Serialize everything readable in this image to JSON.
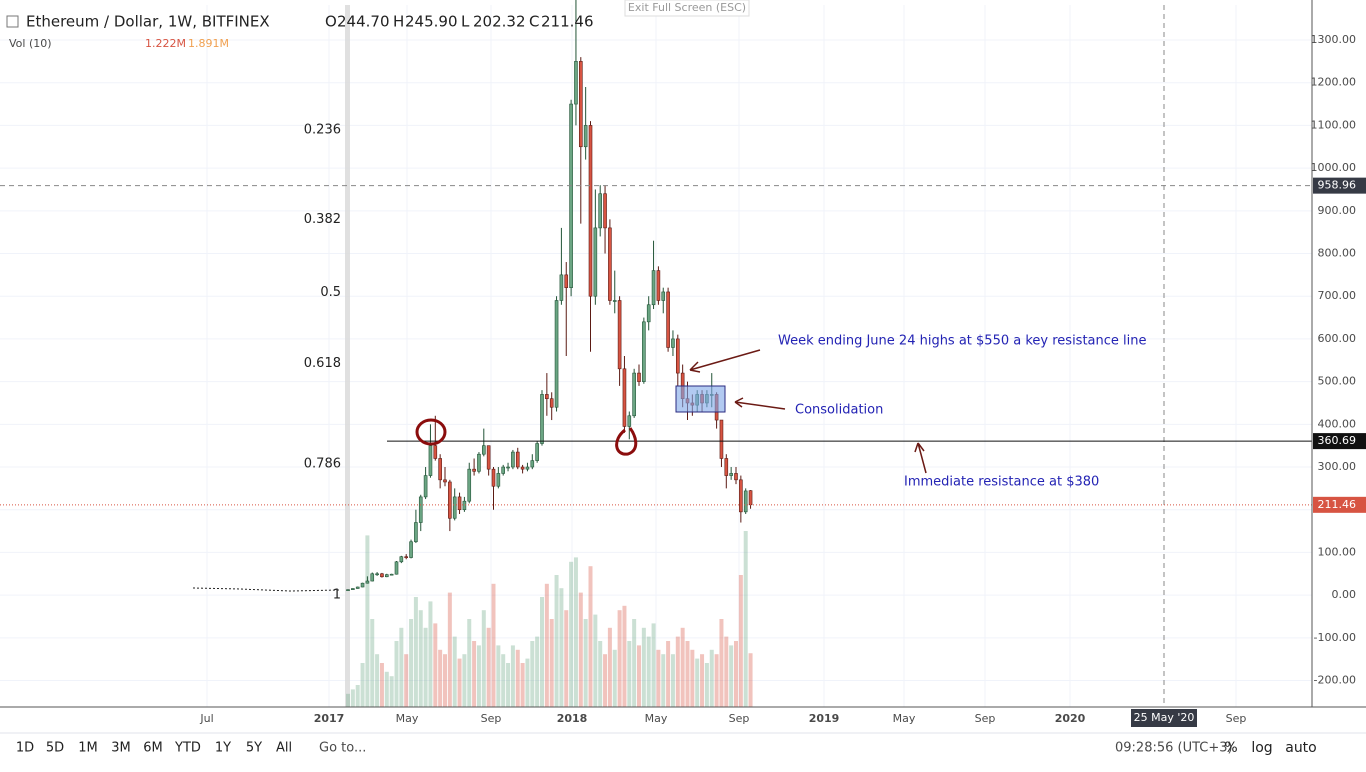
{
  "header": {
    "symbol": "Ethereum / Dollar, 1W, BITFINEX",
    "ohlc": [
      {
        "key": "O",
        "value": 244.7,
        "label": "244.70"
      },
      {
        "key": "H",
        "value": 245.9,
        "label": "245.90"
      },
      {
        "key": "L",
        "value": 202.32,
        "label": "202.32"
      },
      {
        "key": "C",
        "value": 211.46,
        "label": "211.46"
      }
    ],
    "exit": "Exit Full Screen (ESC)",
    "volume_indicator": "Vol (10)",
    "volume_labels": [
      "1.222M",
      "1.891M"
    ]
  },
  "chart_data": {
    "type": "candlestick",
    "candles": [
      [
        11,
        13.5,
        10.5,
        12.8
      ],
      [
        12.8,
        16,
        12.5,
        15.5
      ],
      [
        15.5,
        20,
        15,
        19
      ],
      [
        19,
        29,
        18.5,
        28
      ],
      [
        28,
        44,
        27,
        33
      ],
      [
        33,
        53,
        32,
        50
      ],
      [
        50,
        54,
        45,
        50
      ],
      [
        50,
        52,
        41,
        43
      ],
      [
        43,
        50,
        42,
        48
      ],
      [
        48,
        50,
        46,
        49
      ],
      [
        49,
        80,
        48,
        78
      ],
      [
        78,
        92,
        75,
        90
      ],
      [
        90,
        96,
        84,
        88
      ],
      [
        88,
        130,
        86,
        125
      ],
      [
        125,
        200,
        122,
        170
      ],
      [
        170,
        235,
        150,
        230
      ],
      [
        230,
        300,
        225,
        280
      ],
      [
        280,
        400,
        275,
        350
      ],
      [
        350,
        420,
        315,
        320
      ],
      [
        320,
        330,
        250,
        270
      ],
      [
        270,
        300,
        255,
        265
      ],
      [
        265,
        270,
        150,
        180
      ],
      [
        180,
        250,
        175,
        230
      ],
      [
        230,
        240,
        190,
        200
      ],
      [
        200,
        230,
        195,
        220
      ],
      [
        220,
        310,
        215,
        295
      ],
      [
        295,
        320,
        280,
        290
      ],
      [
        290,
        335,
        285,
        330
      ],
      [
        330,
        390,
        325,
        350
      ],
      [
        350,
        350,
        280,
        295
      ],
      [
        295,
        300,
        200,
        255
      ],
      [
        255,
        300,
        250,
        285
      ],
      [
        285,
        305,
        280,
        300
      ],
      [
        300,
        310,
        290,
        300
      ],
      [
        300,
        340,
        295,
        335
      ],
      [
        335,
        345,
        295,
        300
      ],
      [
        300,
        305,
        285,
        295
      ],
      [
        295,
        310,
        290,
        300
      ],
      [
        300,
        330,
        295,
        315
      ],
      [
        315,
        360,
        310,
        355
      ],
      [
        355,
        480,
        350,
        470
      ],
      [
        470,
        520,
        420,
        460
      ],
      [
        460,
        475,
        410,
        440
      ],
      [
        440,
        700,
        430,
        690
      ],
      [
        690,
        860,
        680,
        750
      ],
      [
        750,
        780,
        560,
        720
      ],
      [
        720,
        1160,
        700,
        1150
      ],
      [
        1150,
        1420,
        1100,
        1250
      ],
      [
        1250,
        1260,
        870,
        1050
      ],
      [
        1050,
        1190,
        1020,
        1100
      ],
      [
        1100,
        1110,
        570,
        700
      ],
      [
        700,
        950,
        680,
        860
      ],
      [
        860,
        960,
        840,
        940
      ],
      [
        940,
        960,
        800,
        860
      ],
      [
        860,
        880,
        680,
        690
      ],
      [
        690,
        760,
        660,
        690
      ],
      [
        690,
        700,
        490,
        530
      ],
      [
        530,
        560,
        380,
        395
      ],
      [
        395,
        430,
        365,
        420
      ],
      [
        420,
        530,
        415,
        520
      ],
      [
        520,
        540,
        490,
        500
      ],
      [
        500,
        650,
        495,
        640
      ],
      [
        640,
        700,
        620,
        680
      ],
      [
        680,
        830,
        670,
        760
      ],
      [
        760,
        770,
        680,
        690
      ],
      [
        690,
        720,
        660,
        710
      ],
      [
        710,
        720,
        570,
        580
      ],
      [
        580,
        620,
        560,
        600
      ],
      [
        600,
        610,
        490,
        520
      ],
      [
        520,
        540,
        440,
        460
      ],
      [
        460,
        500,
        410,
        450
      ],
      [
        450,
        470,
        420,
        445
      ],
      [
        445,
        480,
        430,
        470
      ],
      [
        470,
        480,
        430,
        450
      ],
      [
        450,
        480,
        440,
        470
      ],
      [
        470,
        520,
        440,
        470
      ],
      [
        470,
        475,
        390,
        410
      ],
      [
        410,
        410,
        300,
        320
      ],
      [
        320,
        330,
        250,
        280
      ],
      [
        280,
        300,
        270,
        285
      ],
      [
        285,
        300,
        260,
        270
      ],
      [
        270,
        280,
        170,
        195
      ],
      [
        195,
        250,
        190,
        244
      ],
      [
        244.7,
        245.9,
        202.32,
        211.46
      ]
    ],
    "volume": [
      0.3,
      0.4,
      0.5,
      1.0,
      3.9,
      2.0,
      1.2,
      1.0,
      0.8,
      0.7,
      1.5,
      1.8,
      1.2,
      2.0,
      2.5,
      2.2,
      1.8,
      2.4,
      1.9,
      1.3,
      1.2,
      2.6,
      1.6,
      1.1,
      1.2,
      2.0,
      1.5,
      1.4,
      2.2,
      1.8,
      2.8,
      1.4,
      1.2,
      1.0,
      1.4,
      1.3,
      1.0,
      1.1,
      1.5,
      1.6,
      2.5,
      2.8,
      2.0,
      3.0,
      2.7,
      2.2,
      3.3,
      3.4,
      2.6,
      2.0,
      3.2,
      2.1,
      1.5,
      1.2,
      1.8,
      1.3,
      2.2,
      2.3,
      1.5,
      2.0,
      1.4,
      1.8,
      1.6,
      1.9,
      1.3,
      1.2,
      1.5,
      1.2,
      1.6,
      1.8,
      1.5,
      1.3,
      1.1,
      1.2,
      1.0,
      1.3,
      1.2,
      2.0,
      1.6,
      1.4,
      1.5,
      3.0,
      4.0,
      1.222
    ],
    "vlim": [
      0,
      4
    ],
    "up_color": "#6ba583",
    "down_color": "#d75442",
    "ylim": [
      -262,
      1382
    ],
    "yticks": [
      {
        "value": -200,
        "label": "-200.00"
      },
      {
        "value": -100,
        "label": "-100.00"
      },
      {
        "value": 0,
        "label": "0.00"
      },
      {
        "value": 100,
        "label": "100.00"
      },
      {
        "value": 200,
        "label": "200.00"
      },
      {
        "value": 300,
        "label": "300.00"
      },
      {
        "value": 400,
        "label": "400.00"
      },
      {
        "value": 500,
        "label": "500.00"
      },
      {
        "value": 600,
        "label": "600.00"
      },
      {
        "value": 700,
        "label": "700.00"
      },
      {
        "value": 800,
        "label": "800.00"
      },
      {
        "value": 900,
        "label": "900.00"
      },
      {
        "value": 1000,
        "label": "1000.00"
      },
      {
        "value": 1100,
        "label": "1100.00"
      },
      {
        "value": 1200,
        "label": "1200.00"
      },
      {
        "value": 1300,
        "label": "1300.00"
      }
    ],
    "xticks": [
      "Jul",
      "2017",
      "May",
      "Sep",
      "2018",
      "May",
      "Sep",
      "2019",
      "May",
      "Sep",
      "2020",
      "Sep"
    ],
    "fib_levels": [
      {
        "ratio": 0.236,
        "price": 1089
      },
      {
        "ratio": 0.382,
        "price": 880
      },
      {
        "ratio": 0.5,
        "price": 709
      },
      {
        "ratio": 0.618,
        "price": 543
      },
      {
        "ratio": 0.786,
        "price": 307
      },
      {
        "ratio": 1,
        "price": 0
      }
    ],
    "levels": {
      "crosshair": 958.96,
      "resistance": 360.69,
      "last": 211.46
    },
    "crosshair_date": "25 May '20",
    "annotations": [
      "Week ending June 24 highs at $550 a key resistance line",
      "Consolidation",
      "Immediate resistance at $380"
    ]
  },
  "toolbar": {
    "ranges": [
      "1D",
      "5D",
      "1M",
      "3M",
      "6M",
      "YTD",
      "1Y",
      "5Y",
      "All"
    ],
    "goto": "Go to...",
    "clock": "09:28:56 (UTC+3)",
    "buttons": [
      "%",
      "log",
      "auto"
    ]
  }
}
